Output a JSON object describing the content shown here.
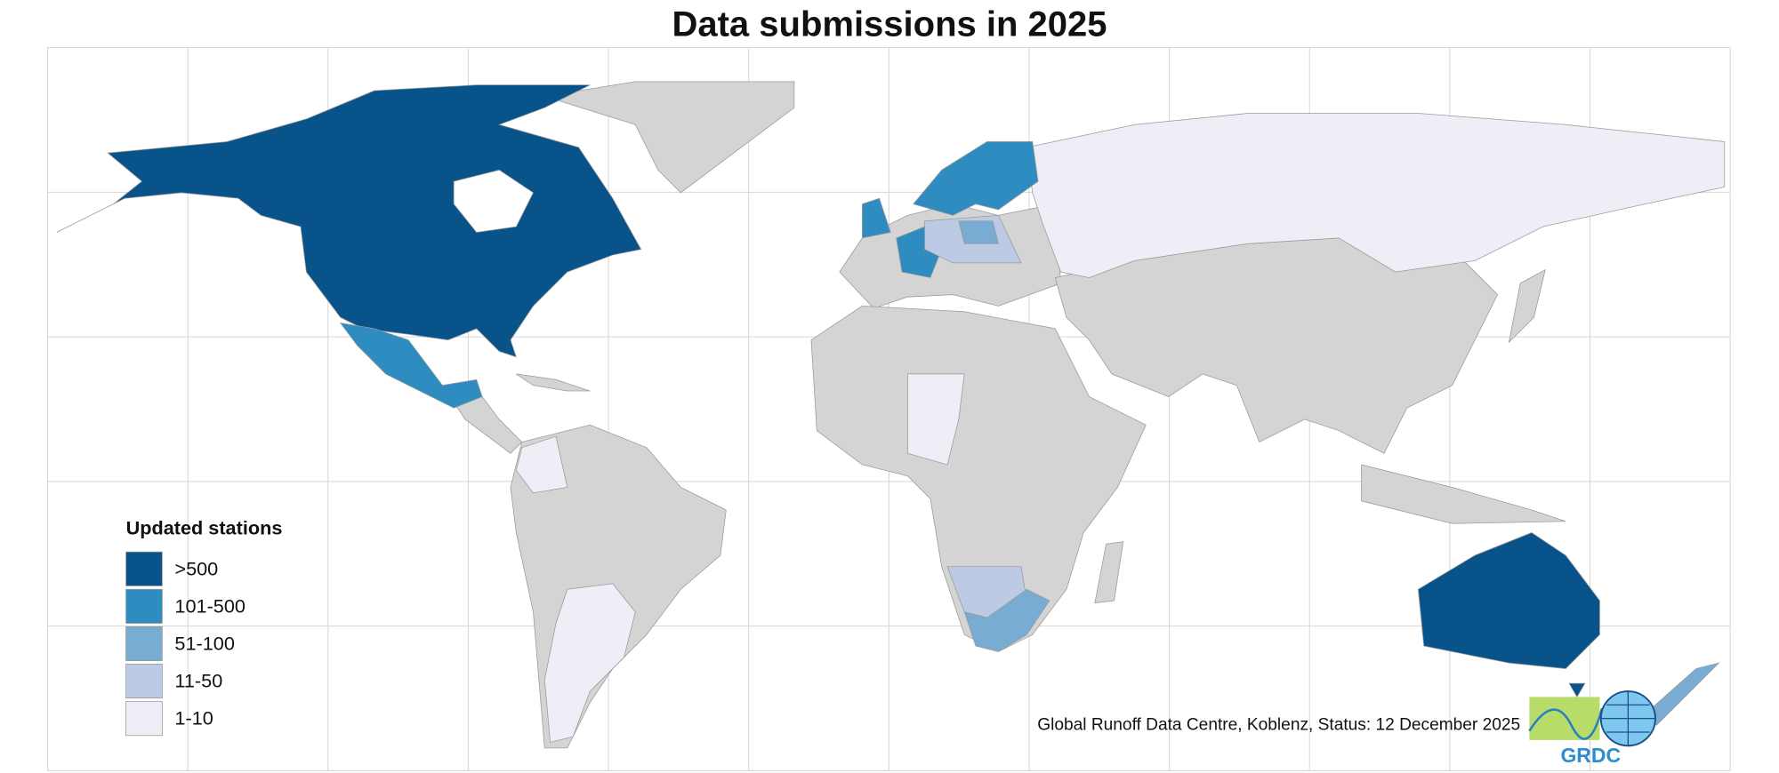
{
  "title": "Data submissions in 2025",
  "legend": {
    "title": "Updated stations",
    "items": [
      {
        "label": ">500",
        "color": "#08538a"
      },
      {
        "label": "101-500",
        "color": "#2e8cc0"
      },
      {
        "label": "51-100",
        "color": "#78acd3"
      },
      {
        "label": "11-50",
        "color": "#bccbe3"
      },
      {
        "label": "1-10",
        "color": "#efedf5"
      }
    ]
  },
  "credit": "Global Runoff Data Centre, Koblenz, Status: 12 December 2025",
  "logo": {
    "text": "GRDC"
  }
}
